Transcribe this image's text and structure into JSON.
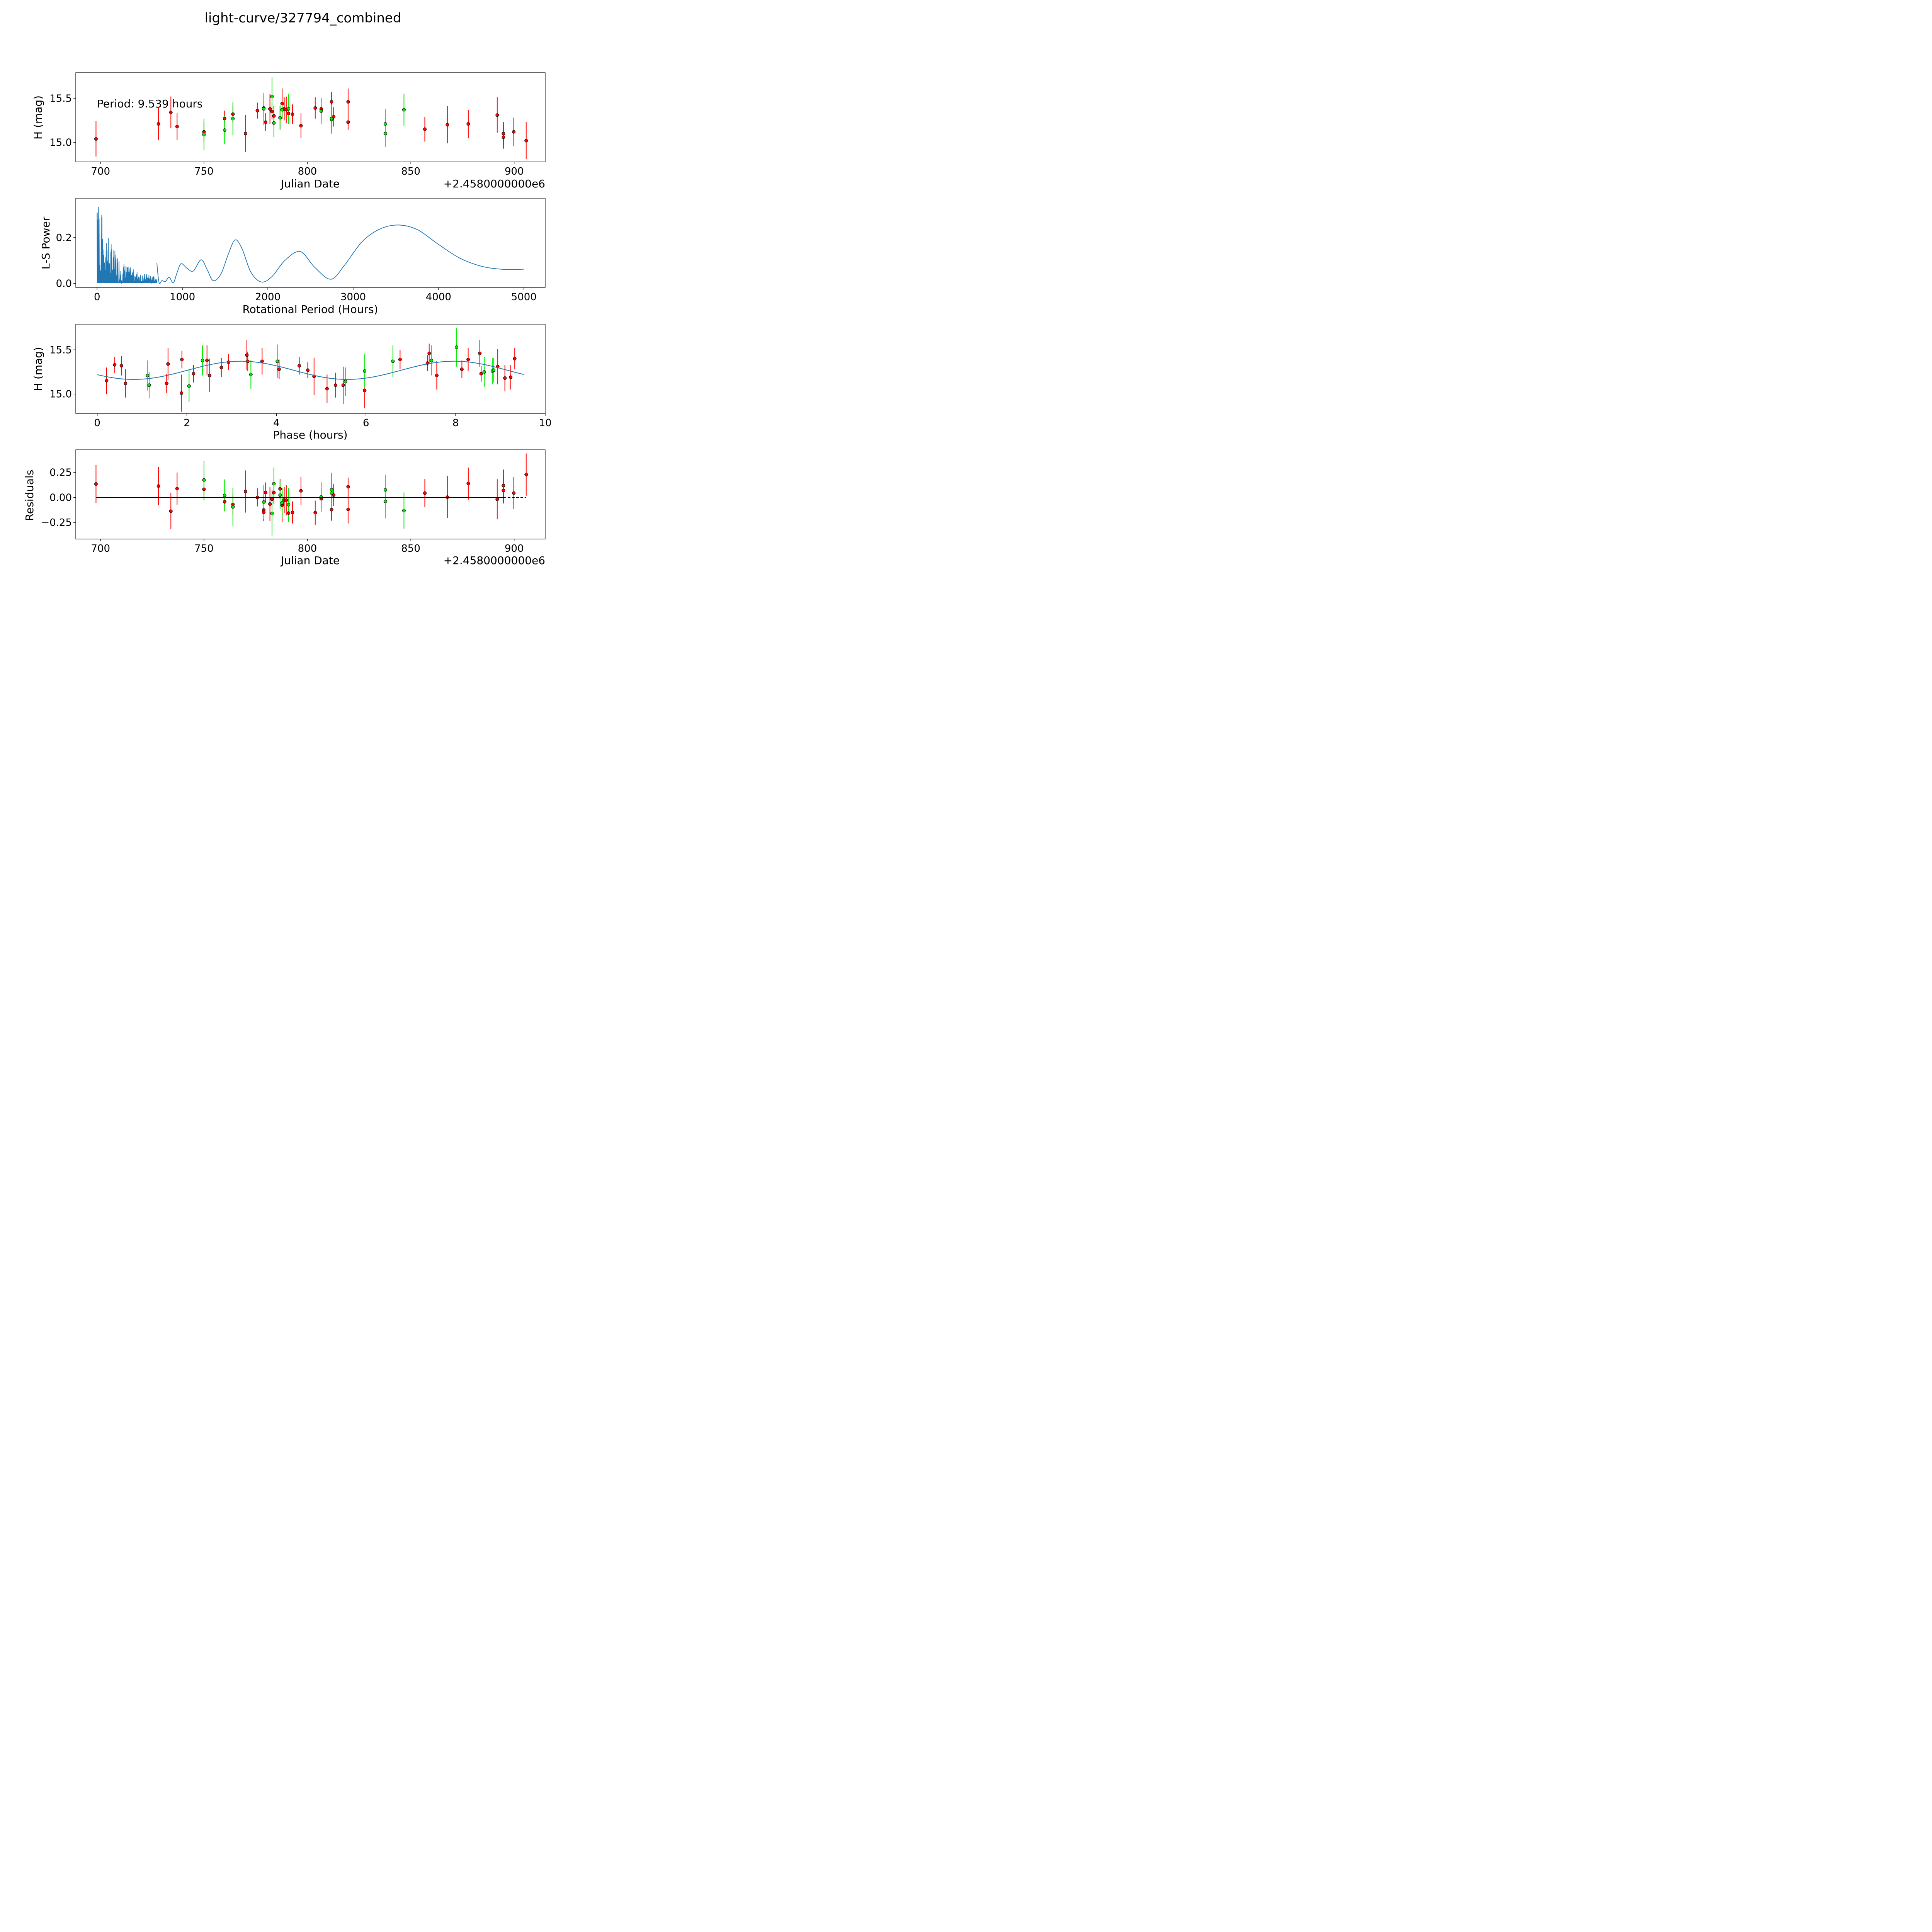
{
  "figure_title": "light-curve/327794_combined",
  "colors": {
    "band_r": "#ff0000",
    "band_g": "#00ee00",
    "curve": "#1f77b4",
    "marker_edge": "#000000"
  },
  "chart_data": [
    {
      "id": "lightcurve",
      "type": "scatter",
      "title": "",
      "xlabel": "Julian Date",
      "ylabel": "H (mag)",
      "x_offset_label": "+2.4580000000e6",
      "xlim": [
        688,
        915
      ],
      "ylim": [
        14.78,
        15.79
      ],
      "xticks": [
        700,
        750,
        800,
        850,
        900
      ],
      "yticks": [
        15.0,
        15.5
      ],
      "ytick_labels": [
        "15.0",
        "15.5"
      ],
      "annotation": "Period: 9.539 hours",
      "series": [
        {
          "name": "red",
          "color": "#ff0000",
          "points": [
            [
              697.8,
              15.04,
              0.2
            ],
            [
              728.0,
              15.21,
              0.18
            ],
            [
              734.0,
              15.34,
              0.18
            ],
            [
              737.0,
              15.18,
              0.15
            ],
            [
              750.0,
              15.12,
              0.11
            ],
            [
              760.0,
              15.27,
              0.09
            ],
            [
              764.0,
              15.32,
              0.1
            ],
            [
              770.1,
              15.1,
              0.21
            ],
            [
              775.8,
              15.36,
              0.09
            ],
            [
              778.9,
              15.39,
              0.1
            ],
            [
              779.8,
              15.23,
              0.1
            ],
            [
              781.9,
              15.38,
              0.17
            ],
            [
              782.9,
              15.35,
              0.09
            ],
            [
              783.8,
              15.3,
              0.11
            ],
            [
              786.8,
              15.28,
              0.13
            ],
            [
              787.8,
              15.44,
              0.17
            ],
            [
              788.8,
              15.38,
              0.13
            ],
            [
              789.8,
              15.37,
              0.15
            ],
            [
              790.9,
              15.33,
              0.12
            ],
            [
              792.8,
              15.32,
              0.11
            ],
            [
              796.9,
              15.19,
              0.14
            ],
            [
              803.8,
              15.39,
              0.12
            ],
            [
              806.7,
              15.38,
              0.11
            ],
            [
              811.7,
              15.46,
              0.11
            ],
            [
              812.7,
              15.29,
              0.11
            ],
            [
              819.7,
              15.46,
              0.15
            ],
            [
              819.7,
              15.23,
              0.09
            ],
            [
              856.8,
              15.15,
              0.14
            ],
            [
              867.7,
              15.2,
              0.21
            ],
            [
              877.8,
              15.21,
              0.16
            ],
            [
              891.8,
              15.31,
              0.2
            ],
            [
              894.8,
              15.1,
              0.13
            ],
            [
              894.8,
              15.06,
              0.13
            ],
            [
              899.8,
              15.12,
              0.16
            ],
            [
              905.8,
              15.02,
              0.21
            ]
          ]
        },
        {
          "name": "green",
          "color": "#00ee00",
          "points": [
            [
              750.0,
              15.09,
              0.18
            ],
            [
              760.0,
              15.14,
              0.16
            ],
            [
              764.0,
              15.27,
              0.19
            ],
            [
              778.9,
              15.38,
              0.18
            ],
            [
              782.9,
              15.52,
              0.22
            ],
            [
              783.8,
              15.22,
              0.16
            ],
            [
              786.8,
              15.28,
              0.14
            ],
            [
              787.8,
              15.37,
              0.09
            ],
            [
              790.9,
              15.38,
              0.17
            ],
            [
              806.7,
              15.355,
              0.15
            ],
            [
              811.7,
              15.26,
              0.16
            ],
            [
              811.7,
              15.27,
              0.16
            ],
            [
              837.7,
              15.21,
              0.17
            ],
            [
              837.7,
              15.1,
              0.15
            ],
            [
              846.7,
              15.37,
              0.18
            ]
          ]
        }
      ]
    },
    {
      "id": "periodogram",
      "type": "line",
      "title": "",
      "xlabel": "Rotational Period (Hours)",
      "ylabel": "L-S Power",
      "xlim": [
        -250,
        5250
      ],
      "ylim": [
        -0.018,
        0.372
      ],
      "xticks": [
        0,
        1000,
        2000,
        3000,
        4000,
        5000
      ],
      "yticks": [
        0.0,
        0.2
      ],
      "ytick_labels": [
        "0.0",
        "0.2"
      ],
      "dense_region": {
        "x_range": [
          0,
          700
        ],
        "peak_power": 0.354,
        "peak_period": 8
      },
      "series": [
        {
          "name": "L-S power",
          "color": "#1f77b4",
          "x": [
            700,
            726,
            760,
            800,
            845,
            893,
            940,
            985,
            1054,
            1127,
            1219,
            1290,
            1360,
            1450,
            1540,
            1618,
            1700,
            1800,
            1923,
            2050,
            2200,
            2380,
            2550,
            2740,
            2900,
            3100,
            3300,
            3520,
            3750,
            4000,
            4250,
            4500,
            4700,
            4870,
            5000
          ],
          "y": [
            0.09,
            0.003,
            0.012,
            0.008,
            0.027,
            0.002,
            0.05,
            0.086,
            0.066,
            0.054,
            0.103,
            0.06,
            0.012,
            0.04,
            0.13,
            0.19,
            0.15,
            0.05,
            0.006,
            0.03,
            0.1,
            0.139,
            0.07,
            0.018,
            0.08,
            0.18,
            0.235,
            0.255,
            0.235,
            0.17,
            0.11,
            0.075,
            0.063,
            0.06,
            0.062
          ]
        }
      ]
    },
    {
      "id": "phase",
      "type": "scatter",
      "title": "",
      "xlabel": "Phase (hours)",
      "ylabel": "H (mag)",
      "xlim": [
        -0.48,
        10.0
      ],
      "ylim": [
        14.78,
        15.79
      ],
      "xticks": [
        0,
        2,
        4,
        6,
        8,
        10
      ],
      "yticks": [
        15.0,
        15.5
      ],
      "ytick_labels": [
        "15.0",
        "15.5"
      ],
      "fit_curve": {
        "period_hours": 9.539,
        "mean": 15.268,
        "amplitude": 0.103,
        "cycles_per_period": 2,
        "phase_of_max": 3.2
      },
      "series": [
        {
          "name": "red",
          "color": "#ff0000",
          "points": [
            [
              0.21,
              15.15,
              0.15
            ],
            [
              0.39,
              15.33,
              0.09
            ],
            [
              0.54,
              15.32,
              0.11
            ],
            [
              0.63,
              15.12,
              0.16
            ],
            [
              1.55,
              15.12,
              0.11
            ],
            [
              1.58,
              15.34,
              0.18
            ],
            [
              1.88,
              15.01,
              0.21
            ],
            [
              1.89,
              15.39,
              0.1
            ],
            [
              2.15,
              15.23,
              0.1
            ],
            [
              2.45,
              15.38,
              0.17
            ],
            [
              2.51,
              15.21,
              0.19
            ],
            [
              2.77,
              15.3,
              0.11
            ],
            [
              2.93,
              15.36,
              0.09
            ],
            [
              3.34,
              15.44,
              0.17
            ],
            [
              3.36,
              15.37,
              0.11
            ],
            [
              3.68,
              15.37,
              0.15
            ],
            [
              4.06,
              15.28,
              0.11
            ],
            [
              4.51,
              15.32,
              0.1
            ],
            [
              4.7,
              15.27,
              0.09
            ],
            [
              4.84,
              15.2,
              0.21
            ],
            [
              5.13,
              15.06,
              0.16
            ],
            [
              5.32,
              15.1,
              0.14
            ],
            [
              5.49,
              15.1,
              0.21
            ],
            [
              5.97,
              15.04,
              0.2
            ],
            [
              6.76,
              15.39,
              0.11
            ],
            [
              7.37,
              15.35,
              0.09
            ],
            [
              7.41,
              15.46,
              0.11
            ],
            [
              7.58,
              15.21,
              0.16
            ],
            [
              8.14,
              15.28,
              0.1
            ],
            [
              8.28,
              15.39,
              0.13
            ],
            [
              8.54,
              15.46,
              0.15
            ],
            [
              8.57,
              15.23,
              0.09
            ],
            [
              8.94,
              15.31,
              0.2
            ],
            [
              9.1,
              15.18,
              0.15
            ],
            [
              9.23,
              15.19,
              0.14
            ],
            [
              9.32,
              15.4,
              0.12
            ]
          ]
        },
        {
          "name": "green",
          "color": "#00ee00",
          "points": [
            [
              1.12,
              15.21,
              0.17
            ],
            [
              1.16,
              15.1,
              0.15
            ],
            [
              2.05,
              15.09,
              0.18
            ],
            [
              2.35,
              15.38,
              0.17
            ],
            [
              3.43,
              15.22,
              0.16
            ],
            [
              4.02,
              15.37,
              0.19
            ],
            [
              5.54,
              15.14,
              0.16
            ],
            [
              5.97,
              15.26,
              0.19
            ],
            [
              6.6,
              15.37,
              0.18
            ],
            [
              7.46,
              15.38,
              0.17
            ],
            [
              8.02,
              15.53,
              0.22
            ],
            [
              8.64,
              15.25,
              0.17
            ],
            [
              8.82,
              15.26,
              0.15
            ],
            [
              8.85,
              15.27,
              0.14
            ]
          ]
        }
      ]
    },
    {
      "id": "residuals",
      "type": "scatter",
      "title": "",
      "xlabel": "Julian Date",
      "ylabel": "Residuals",
      "x_offset_label": "+2.4580000000e6",
      "xlim": [
        688,
        915
      ],
      "ylim": [
        -0.415,
        0.475
      ],
      "xticks": [
        700,
        750,
        800,
        850,
        900
      ],
      "yticks": [
        -0.25,
        0.0,
        0.25
      ],
      "ytick_labels": [
        "−0.25",
        "0.00",
        "0.25"
      ],
      "zero_line": {
        "solid_range": [
          697.8,
          894.8
        ],
        "dashed_range": [
          894.8,
          905.8
        ]
      },
      "series": [
        {
          "name": "red",
          "color": "#ff0000",
          "points": [
            [
              697.8,
              0.134,
              0.19
            ],
            [
              728.0,
              0.113,
              0.19
            ],
            [
              734.0,
              -0.137,
              0.18
            ],
            [
              737.0,
              0.088,
              0.16
            ],
            [
              750.0,
              0.081,
              0.11
            ],
            [
              760.0,
              -0.044,
              0.09
            ],
            [
              764.0,
              -0.07,
              0.1
            ],
            [
              770.1,
              0.059,
              0.21
            ],
            [
              775.8,
              0.0,
              0.09
            ],
            [
              778.9,
              -0.125,
              0.11
            ],
            [
              778.9,
              -0.148,
              0.09
            ],
            [
              779.8,
              0.049,
              0.1
            ],
            [
              781.9,
              -0.066,
              0.17
            ],
            [
              782.9,
              -0.017,
              0.09
            ],
            [
              783.8,
              0.047,
              0.11
            ],
            [
              786.8,
              0.085,
              0.1
            ],
            [
              787.8,
              -0.078,
              0.17
            ],
            [
              788.8,
              -0.025,
              0.13
            ],
            [
              789.8,
              -0.028,
              0.15
            ],
            [
              790.9,
              -0.156,
              0.09
            ],
            [
              792.8,
              -0.15,
              0.11
            ],
            [
              796.9,
              0.066,
              0.14
            ],
            [
              803.8,
              -0.152,
              0.12
            ],
            [
              806.7,
              -0.013,
              0.11
            ],
            [
              811.7,
              -0.122,
              0.11
            ],
            [
              812.7,
              0.023,
              0.11
            ],
            [
              819.7,
              0.107,
              0.09
            ],
            [
              819.7,
              -0.12,
              0.14
            ],
            [
              856.8,
              0.043,
              0.14
            ],
            [
              867.7,
              0.003,
              0.21
            ],
            [
              877.8,
              0.138,
              0.16
            ],
            [
              891.8,
              -0.019,
              0.2
            ],
            [
              894.8,
              0.118,
              0.16
            ],
            [
              894.8,
              0.07,
              0.13
            ],
            [
              899.8,
              0.043,
              0.16
            ],
            [
              905.8,
              0.228,
              0.21
            ]
          ]
        },
        {
          "name": "green",
          "color": "#00ee00",
          "points": [
            [
              750.0,
              0.174,
              0.19
            ],
            [
              760.0,
              0.02,
              0.16
            ],
            [
              764.0,
              -0.094,
              0.19
            ],
            [
              778.9,
              -0.046,
              0.17
            ],
            [
              782.9,
              -0.16,
              0.22
            ],
            [
              783.8,
              0.137,
              0.16
            ],
            [
              786.8,
              0.022,
              0.14
            ],
            [
              787.8,
              -0.055,
              0.15
            ],
            [
              790.9,
              -0.073,
              0.17
            ],
            [
              806.7,
              0.004,
              0.15
            ],
            [
              811.7,
              0.076,
              0.17
            ],
            [
              811.7,
              0.043,
              0.16
            ],
            [
              837.7,
              0.075,
              0.15
            ],
            [
              837.7,
              -0.039,
              0.17
            ],
            [
              846.7,
              -0.131,
              0.18
            ]
          ]
        }
      ]
    }
  ]
}
